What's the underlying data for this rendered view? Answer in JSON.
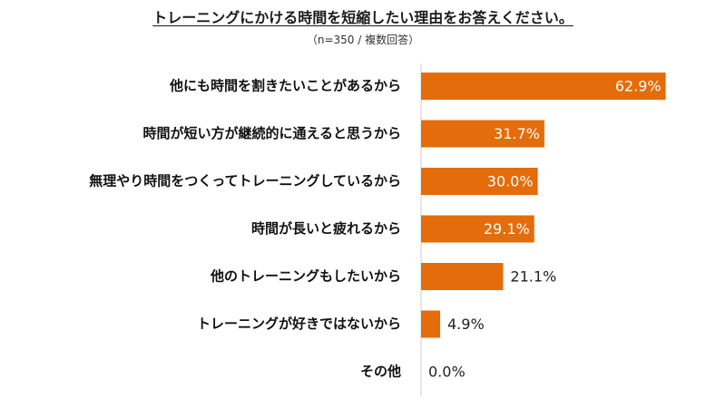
{
  "title": "トレーニングにかける時間を短縮したい理由をお答えください。",
  "subtitle": "（n=350 / 複数回答）",
  "colors": {
    "bar": "#E46C0A",
    "label_inside": "#ffffff",
    "label_outside": "#222222",
    "axis": "#cccccc"
  },
  "chart_data": {
    "type": "bar",
    "orientation": "horizontal",
    "title": "トレーニングにかける時間を短縮したい理由をお答えください。",
    "subtitle": "（n=350 / 複数回答）",
    "categories": [
      "他にも時間を割きたいことがあるから",
      "時間が短い方が継続的に通えると思うから",
      "無理やり時間をつくってトレーニングしているから",
      "時間が長いと疲れるから",
      "他のトレーニングもしたいから",
      "トレーニングが好きではないから",
      "その他"
    ],
    "values": [
      62.9,
      31.7,
      30.0,
      29.1,
      21.1,
      4.9,
      0.0
    ],
    "value_labels": [
      "62.9%",
      "31.7%",
      "30.0%",
      "29.1%",
      "21.1%",
      "4.9%",
      "0.0%"
    ],
    "unit": "%",
    "xlim": [
      0,
      63
    ],
    "grid": false,
    "legend": "none"
  }
}
